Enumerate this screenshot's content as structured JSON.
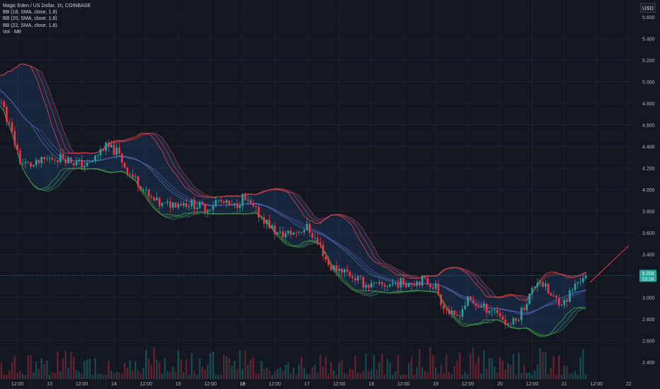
{
  "legend": {
    "symbol": "Magic Eden / US Dollar, 1h, COINBASE",
    "bb1": "BB (18, SMA, close, 1.8)",
    "bb2": "BB (20, SMA, close, 1.8)",
    "bb3": "BB (22, SMA, close, 1.8)",
    "vol": "Vol · ME"
  },
  "currency": "USD",
  "price_label": {
    "value": "3.203",
    "countdown": "23:18"
  },
  "colors": {
    "background": "#131722",
    "grid": "#1e222d",
    "up": "#26a69a",
    "down": "#f23645",
    "band_fill": "#1f3a5f",
    "bb_upper": "#e8434b",
    "bb_lower": "#43a047",
    "bb_basis": "#4a78c2",
    "trend_line": "#f23645"
  },
  "chart_data": {
    "type": "candlestick",
    "y_axis_ticks": [
      "5.600",
      "5.400",
      "5.200",
      "5.000",
      "4.800",
      "4.600",
      "4.400",
      "4.200",
      "4.000",
      "3.800",
      "3.600",
      "3.400",
      "3.200",
      "3.000",
      "2.800",
      "2.600",
      "2.400"
    ],
    "x_axis_ticks": [
      "12:00",
      "13",
      "12:00",
      "14",
      "12:00",
      "15",
      "12:00",
      "16",
      "12:00",
      "17",
      "12:00",
      "18",
      "12:00",
      "19",
      "12:00",
      "20",
      "12:00",
      "21",
      "12:00",
      "22"
    ],
    "ylim": [
      2.33,
      5.66
    ],
    "x_range_days": [
      12.0,
      22.0
    ],
    "current_price": 3.203,
    "price_path": [
      [
        12.0,
        5.0
      ],
      [
        12.25,
        4.82
      ],
      [
        12.4,
        4.55
      ],
      [
        12.55,
        4.25
      ],
      [
        12.75,
        4.22
      ],
      [
        12.95,
        4.28
      ],
      [
        13.2,
        4.3
      ],
      [
        13.4,
        4.25
      ],
      [
        13.6,
        4.22
      ],
      [
        13.85,
        4.4
      ],
      [
        14.05,
        4.35
      ],
      [
        14.2,
        4.18
      ],
      [
        14.4,
        4.05
      ],
      [
        14.55,
        3.92
      ],
      [
        14.75,
        3.85
      ],
      [
        15.0,
        3.88
      ],
      [
        15.2,
        3.87
      ],
      [
        15.45,
        3.82
      ],
      [
        15.6,
        3.9
      ],
      [
        15.85,
        3.83
      ],
      [
        16.0,
        3.92
      ],
      [
        16.2,
        3.8
      ],
      [
        16.4,
        3.68
      ],
      [
        16.55,
        3.58
      ],
      [
        16.8,
        3.6
      ],
      [
        17.0,
        3.65
      ],
      [
        17.2,
        3.48
      ],
      [
        17.35,
        3.28
      ],
      [
        17.55,
        3.26
      ],
      [
        17.7,
        3.2
      ],
      [
        17.9,
        3.12
      ],
      [
        18.1,
        3.1
      ],
      [
        18.35,
        3.13
      ],
      [
        18.6,
        3.14
      ],
      [
        18.8,
        3.16
      ],
      [
        19.0,
        3.1
      ],
      [
        19.1,
        2.94
      ],
      [
        19.3,
        2.8
      ],
      [
        19.5,
        2.97
      ],
      [
        19.75,
        2.9
      ],
      [
        19.95,
        2.88
      ],
      [
        20.1,
        2.75
      ],
      [
        20.25,
        2.78
      ],
      [
        20.4,
        2.95
      ],
      [
        20.6,
        3.18
      ],
      [
        20.8,
        3.0
      ],
      [
        21.0,
        2.95
      ],
      [
        21.15,
        3.1
      ],
      [
        21.3,
        3.2
      ],
      [
        21.35,
        3.203
      ]
    ],
    "trend_line": {
      "from": [
        21.4,
        3.14
      ],
      "to": [
        22.0,
        3.48
      ]
    }
  }
}
